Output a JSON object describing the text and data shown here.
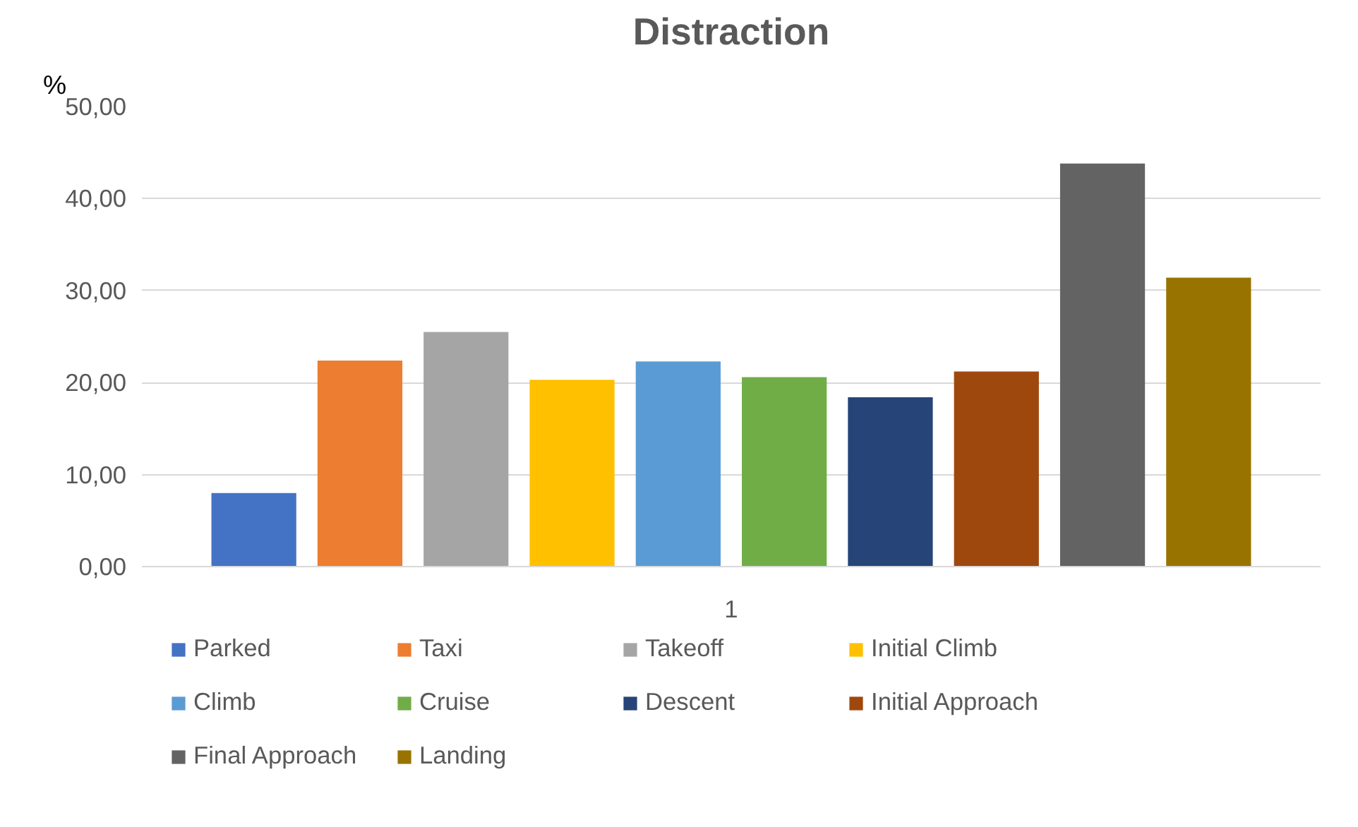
{
  "chart_data": {
    "type": "bar",
    "title": "Distraction",
    "ylabel": "%",
    "categories": [
      "1"
    ],
    "series": [
      {
        "name": "Parked",
        "color": "#4472c4",
        "values": [
          8.0
        ]
      },
      {
        "name": "Taxi",
        "color": "#ed7d31",
        "values": [
          22.4
        ]
      },
      {
        "name": "Takeoff",
        "color": "#a5a5a5",
        "values": [
          25.5
        ]
      },
      {
        "name": "Initial Climb",
        "color": "#ffc000",
        "values": [
          20.3
        ]
      },
      {
        "name": "Climb",
        "color": "#5b9bd5",
        "values": [
          22.3
        ]
      },
      {
        "name": "Cruise",
        "color": "#70ad47",
        "values": [
          20.6
        ]
      },
      {
        "name": "Descent",
        "color": "#264478",
        "values": [
          18.4
        ]
      },
      {
        "name": "Initial Approach",
        "color": "#9e480e",
        "values": [
          21.2
        ]
      },
      {
        "name": "Final Approach",
        "color": "#636363",
        "values": [
          43.8
        ]
      },
      {
        "name": "Landing",
        "color": "#997300",
        "values": [
          31.4
        ]
      }
    ],
    "ylim": [
      0,
      50
    ],
    "yticks": [
      {
        "value": 0,
        "label": "0,00"
      },
      {
        "value": 10,
        "label": "10,00"
      },
      {
        "value": 20,
        "label": "20,00"
      },
      {
        "value": 30,
        "label": "30,00"
      },
      {
        "value": 40,
        "label": "40,00"
      },
      {
        "value": 50,
        "label": "50,00"
      }
    ],
    "grid": "y",
    "legend": "bottom"
  }
}
